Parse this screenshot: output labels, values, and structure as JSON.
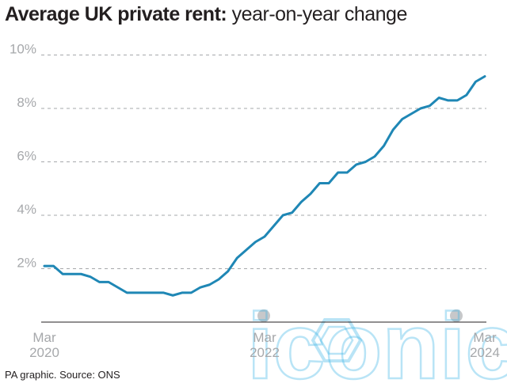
{
  "title": {
    "bold": "Average UK private rent:",
    "light": " year-on-year change"
  },
  "source": "PA graphic. Source: ONS",
  "watermark": "iconic",
  "colors": {
    "line": "#1f87b5",
    "grid": "#a6a8ab",
    "axis_text": "#a6a8ab",
    "title": "#231f20"
  },
  "chart_data": {
    "type": "line",
    "title": "Average UK private rent: year-on-year change",
    "xlabel": "",
    "ylabel": "",
    "ylim": [
      0,
      10
    ],
    "y_ticks": [
      {
        "value": 2,
        "label": "2%"
      },
      {
        "value": 4,
        "label": "4%"
      },
      {
        "value": 6,
        "label": "6%"
      },
      {
        "value": 8,
        "label": "8%"
      },
      {
        "value": 10,
        "label": "10%"
      }
    ],
    "x_ticks": [
      {
        "index": 0,
        "line1": "Mar",
        "line2": "2020"
      },
      {
        "index": 24,
        "line1": "Mar",
        "line2": "2022"
      },
      {
        "index": 48,
        "line1": "Mar",
        "line2": "2024"
      }
    ],
    "grid": true,
    "series": [
      {
        "name": "Year-on-year change (%)",
        "unit": "%",
        "period": "Mar 2020 - Mar 2024, monthly",
        "values": [
          2.1,
          2.1,
          1.8,
          1.8,
          1.8,
          1.7,
          1.5,
          1.5,
          1.3,
          1.1,
          1.1,
          1.1,
          1.1,
          1.1,
          1.0,
          1.1,
          1.1,
          1.3,
          1.4,
          1.6,
          1.9,
          2.4,
          2.7,
          3.0,
          3.2,
          3.6,
          4.0,
          4.1,
          4.5,
          4.8,
          5.2,
          5.2,
          5.6,
          5.6,
          5.9,
          6.0,
          6.2,
          6.6,
          7.2,
          7.6,
          7.8,
          8.0,
          8.1,
          8.4,
          8.3,
          8.3,
          8.5,
          9.0,
          9.2
        ]
      }
    ]
  }
}
